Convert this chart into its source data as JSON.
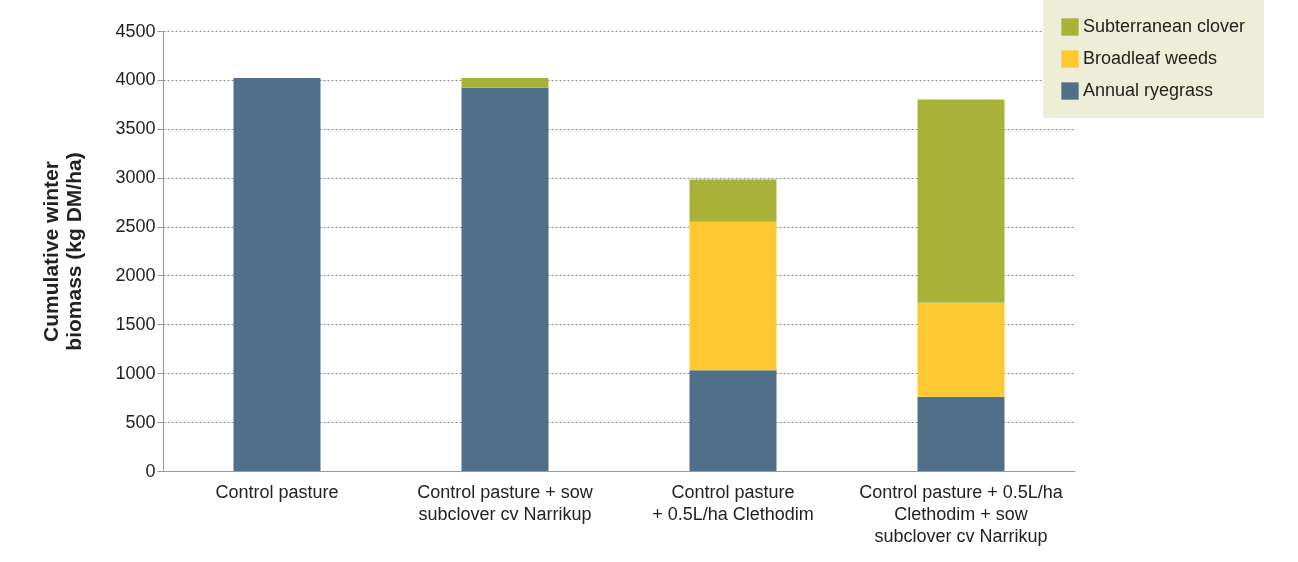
{
  "chart_data": {
    "type": "bar",
    "stacked": true,
    "ylabel": "Cumulative winter\nbiomass (kg DM/ha)",
    "categories": [
      "Control pasture",
      "Control pasture + sow\nsubclover cv Narrikup",
      "Control pasture\n+ 0.5L/ha Clethodim",
      "Control pasture + 0.5L/ha\nClethodim + sow\nsubclover cv Narrikup"
    ],
    "series": [
      {
        "name": "Annual ryegrass",
        "color": "#4f7088",
        "values": [
          4020,
          3920,
          1030,
          760
        ]
      },
      {
        "name": "Broadleaf weeds",
        "color": "#fec832",
        "values": [
          null,
          null,
          1520,
          960
        ]
      },
      {
        "name": "Subterranean clover",
        "color": "#a8b238",
        "values": [
          null,
          100,
          430,
          2080
        ]
      }
    ],
    "ylim": [
      0,
      4500
    ],
    "yticks": [
      0,
      500,
      1000,
      1500,
      2000,
      2500,
      3000,
      3500,
      4000,
      4500
    ],
    "grid": "y",
    "legend": "top right"
  }
}
